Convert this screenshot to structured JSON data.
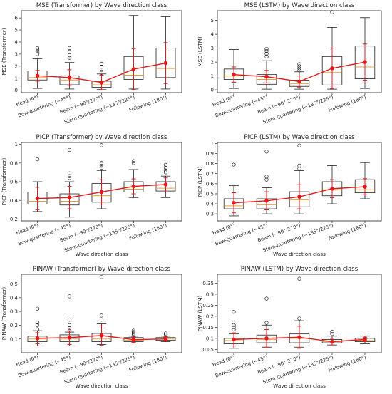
{
  "figure": {
    "note": ""
  },
  "style": {
    "box_color": "#222222",
    "median_color": "#f39c34",
    "mean_color": "#e31a1c",
    "outlier_color": "#222222"
  },
  "chart_data": [
    {
      "type": "box",
      "title": "MSE (Transformer) by Wave direction class",
      "xlabel": "",
      "ylabel": "MSE (Transformer)",
      "ylim": [
        -0.2,
        6.6
      ],
      "yticks": [
        0,
        1,
        2,
        3,
        4,
        5,
        6
      ],
      "categories": [
        "Head (0°)",
        "Bow-quartering (~45°)",
        "Beam (~90°/270°)",
        "Stern-quartering (~135°/225°)",
        "Following (180°)"
      ],
      "boxes": [
        {
          "whislo": 0.15,
          "q1": 0.85,
          "med": 1.05,
          "q3": 1.6,
          "whishi": 2.6,
          "outliers": [
            3.0,
            3.2,
            3.35,
            3.5
          ]
        },
        {
          "whislo": 0.1,
          "q1": 0.45,
          "med": 0.85,
          "q3": 1.2,
          "whishi": 2.3,
          "outliers": [
            2.7,
            2.9,
            3.2,
            3.5
          ]
        },
        {
          "whislo": 0.05,
          "q1": 0.25,
          "med": 0.45,
          "q3": 0.75,
          "whishi": 1.35,
          "outliers": [
            1.45,
            1.55,
            1.7,
            1.95,
            2.2
          ]
        },
        {
          "whislo": 0.1,
          "q1": 0.9,
          "med": 1.25,
          "q3": 2.8,
          "whishi": 6.2,
          "outliers": []
        },
        {
          "whislo": 0.1,
          "q1": 1.05,
          "med": 1.8,
          "q3": 3.5,
          "whishi": 6.1,
          "outliers": []
        }
      ],
      "mean": [
        1.2,
        1.05,
        0.65,
        1.75,
        2.25
      ],
      "mean_err": [
        0.45,
        0.65,
        0.6,
        1.7,
        1.7
      ]
    },
    {
      "type": "box",
      "title": "MSE (LSTM) by Wave direction class",
      "xlabel": "",
      "ylabel": "MSE (LSTM)",
      "ylim": [
        -0.2,
        5.7
      ],
      "yticks": [
        0,
        1,
        2,
        3,
        4,
        5
      ],
      "categories": [
        "Head (0°)",
        "Bow-quartering (~45°)",
        "Beam (~90°/270°)",
        "Stern-quartering (~135°/225°)",
        "Following (180°)"
      ],
      "boxes": [
        {
          "whislo": 0.1,
          "q1": 0.75,
          "med": 1.0,
          "q3": 1.5,
          "whishi": 2.9,
          "outliers": []
        },
        {
          "whislo": 0.05,
          "q1": 0.4,
          "med": 0.75,
          "q3": 1.1,
          "whishi": 2.1,
          "outliers": [
            2.4,
            2.6,
            2.8,
            2.95
          ]
        },
        {
          "whislo": 0.05,
          "q1": 0.25,
          "med": 0.45,
          "q3": 0.7,
          "whishi": 1.3,
          "outliers": [
            1.4,
            1.55,
            1.7,
            1.85
          ]
        },
        {
          "whislo": 0.05,
          "q1": 0.35,
          "med": 1.25,
          "q3": 2.4,
          "whishi": 4.5,
          "outliers": [
            5.6
          ]
        },
        {
          "whislo": 0.1,
          "q1": 0.8,
          "med": 1.65,
          "q3": 3.15,
          "whishi": 5.2,
          "outliers": []
        }
      ],
      "mean": [
        1.1,
        0.95,
        0.6,
        1.55,
        2.0
      ],
      "mean_err": [
        0.55,
        0.45,
        0.4,
        1.45,
        1.3
      ]
    },
    {
      "type": "box",
      "title": "PICP (Transformer) by Wave direction class",
      "xlabel": "Wave direction class",
      "ylabel": "PICP (Transformer)",
      "ylim": [
        0.18,
        1.02
      ],
      "yticks": [
        0.2,
        0.4,
        0.6,
        0.8,
        1.0
      ],
      "categories": [
        "Head (0°)",
        "Bow-quartering (~45°)",
        "Beam (~90°/270°)",
        "Stern-quartering (~135°/225°)",
        "Following (180°)"
      ],
      "boxes": [
        {
          "whislo": 0.28,
          "q1": 0.36,
          "med": 0.39,
          "q3": 0.49,
          "whishi": 0.6,
          "outliers": [
            0.84
          ]
        },
        {
          "whislo": 0.22,
          "q1": 0.35,
          "med": 0.39,
          "q3": 0.47,
          "whishi": 0.6,
          "outliers": [
            0.64,
            0.66,
            0.69,
            0.94
          ]
        },
        {
          "whislo": 0.31,
          "q1": 0.38,
          "med": 0.45,
          "q3": 0.58,
          "whishi": 0.72,
          "outliers": [
            0.75,
            0.77,
            0.79,
            0.8,
            0.99
          ]
        },
        {
          "whislo": 0.43,
          "q1": 0.49,
          "med": 0.52,
          "q3": 0.6,
          "whishi": 0.73,
          "outliers": [
            0.8,
            0.82
          ]
        },
        {
          "whislo": 0.43,
          "q1": 0.5,
          "med": 0.53,
          "q3": 0.6,
          "whishi": 0.66,
          "outliers": [
            0.7,
            0.72,
            0.75,
            0.78
          ]
        }
      ],
      "mean": [
        0.42,
        0.43,
        0.49,
        0.55,
        0.57
      ],
      "mean_err": [
        0.12,
        0.12,
        0.13,
        0.08,
        0.07
      ]
    },
    {
      "type": "box",
      "title": "PICP (LSTM) by Wave direction class",
      "xlabel": "Wave direction class",
      "ylabel": "PICP (LSTM)",
      "ylim": [
        0.23,
        1.01
      ],
      "yticks": [
        0.3,
        0.4,
        0.5,
        0.6,
        0.7,
        0.8,
        0.9,
        1.0
      ],
      "categories": [
        "Head (0°)",
        "Bow-quartering (~45°)",
        "Beam (~90°/270°)",
        "Stern-quartering (~135°/225°)",
        "Following (180°)"
      ],
      "boxes": [
        {
          "whislo": 0.28,
          "q1": 0.35,
          "med": 0.38,
          "q3": 0.45,
          "whishi": 0.58,
          "outliers": [
            0.79
          ]
        },
        {
          "whislo": 0.3,
          "q1": 0.35,
          "med": 0.39,
          "q3": 0.45,
          "whishi": 0.56,
          "outliers": [
            0.64,
            0.67,
            0.92
          ]
        },
        {
          "whislo": 0.3,
          "q1": 0.37,
          "med": 0.44,
          "q3": 0.52,
          "whishi": 0.73,
          "outliers": [
            0.75,
            0.78,
            0.98
          ]
        },
        {
          "whislo": 0.4,
          "q1": 0.48,
          "med": 0.54,
          "q3": 0.62,
          "whishi": 0.78,
          "outliers": []
        },
        {
          "whislo": 0.45,
          "q1": 0.51,
          "med": 0.54,
          "q3": 0.64,
          "whishi": 0.81,
          "outliers": []
        }
      ],
      "mean": [
        0.41,
        0.43,
        0.47,
        0.55,
        0.57
      ],
      "mean_err": [
        0.1,
        0.09,
        0.12,
        0.09,
        0.08
      ]
    },
    {
      "type": "box",
      "title": "PINAW (Transformer) by Wave direction class",
      "xlabel": "Wave direction class",
      "ylabel": "PINAW (Transformer)",
      "ylim": [
        0.0,
        0.57
      ],
      "yticks": [
        0.1,
        0.2,
        0.3,
        0.4,
        0.5
      ],
      "categories": [
        "Head (0°)",
        "Bow-quartering (~45°)",
        "Beam (~90°/270°)",
        "Stern-quartering (~135°/225°)",
        "Following (180°)"
      ],
      "boxes": [
        {
          "whislo": 0.05,
          "q1": 0.08,
          "med": 0.1,
          "q3": 0.12,
          "whishi": 0.16,
          "outliers": [
            0.17,
            0.2,
            0.22,
            0.32
          ]
        },
        {
          "whislo": 0.05,
          "q1": 0.08,
          "med": 0.1,
          "q3": 0.13,
          "whishi": 0.15,
          "outliers": [
            0.16,
            0.18,
            0.2,
            0.24,
            0.41
          ]
        },
        {
          "whislo": 0.06,
          "q1": 0.08,
          "med": 0.1,
          "q3": 0.14,
          "whishi": 0.21,
          "outliers": [
            0.24,
            0.27,
            0.55
          ]
        },
        {
          "whislo": 0.07,
          "q1": 0.08,
          "med": 0.09,
          "q3": 0.11,
          "whishi": 0.12,
          "outliers": [
            0.13,
            0.14,
            0.15,
            0.16
          ]
        },
        {
          "whislo": 0.08,
          "q1": 0.09,
          "med": 0.1,
          "q3": 0.11,
          "whishi": 0.12,
          "outliers": [
            0.13,
            0.14
          ]
        }
      ],
      "mean": [
        0.105,
        0.11,
        0.125,
        0.095,
        0.1
      ],
      "mean_err": [
        0.04,
        0.05,
        0.07,
        0.02,
        0.015
      ]
    },
    {
      "type": "box",
      "title": "PINAW (LSTM) by Wave direction class",
      "xlabel": "Wave direction class",
      "ylabel": "PINAW (LSTM)",
      "ylim": [
        0.035,
        0.39
      ],
      "yticks": [
        0.05,
        0.1,
        0.15,
        0.2,
        0.25,
        0.3,
        0.35
      ],
      "categories": [
        "Head (0°)",
        "Bow-quartering (~45°)",
        "Beam (~90°/270°)",
        "Stern-quartering (~135°/225°)",
        "Following (180°)"
      ],
      "boxes": [
        {
          "whislo": 0.055,
          "q1": 0.075,
          "med": 0.09,
          "q3": 0.1,
          "whishi": 0.12,
          "outliers": [
            0.14,
            0.15,
            0.16,
            0.22
          ]
        },
        {
          "whislo": 0.06,
          "q1": 0.08,
          "med": 0.095,
          "q3": 0.115,
          "whishi": 0.16,
          "outliers": [
            0.17,
            0.28
          ]
        },
        {
          "whislo": 0.06,
          "q1": 0.08,
          "med": 0.1,
          "q3": 0.12,
          "whishi": 0.18,
          "outliers": [
            0.19,
            0.37
          ]
        },
        {
          "whislo": 0.07,
          "q1": 0.08,
          "med": 0.085,
          "q3": 0.095,
          "whishi": 0.11,
          "outliers": [
            0.12,
            0.13
          ]
        },
        {
          "whislo": 0.075,
          "q1": 0.085,
          "med": 0.09,
          "q3": 0.1,
          "whishi": 0.11,
          "outliers": []
        }
      ],
      "mean": [
        0.095,
        0.1,
        0.105,
        0.085,
        0.095
      ],
      "mean_err": [
        0.03,
        0.04,
        0.05,
        0.015,
        0.01
      ]
    }
  ]
}
